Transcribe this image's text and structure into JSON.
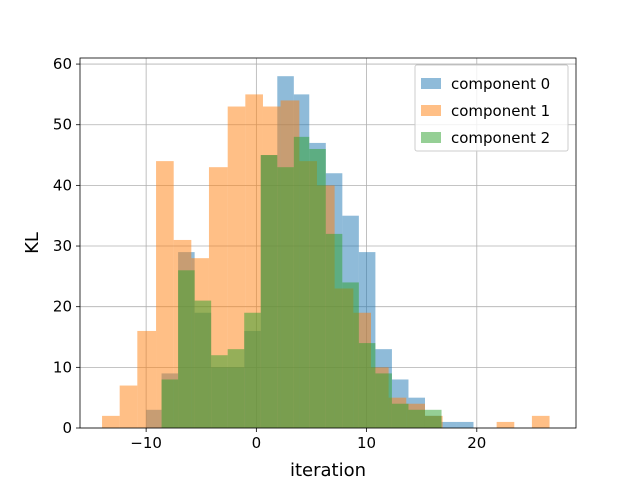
{
  "chart_data": {
    "type": "bar",
    "title": "",
    "xlabel": "iteration",
    "ylabel": "KL",
    "xlim": [
      -16,
      29
    ],
    "ylim": [
      0,
      61
    ],
    "xticks": [
      -10,
      0,
      10,
      20
    ],
    "yticks": [
      0,
      10,
      20,
      30,
      40,
      50,
      60
    ],
    "grid": true,
    "legend_position": "top-right",
    "alpha": 0.5,
    "series": [
      {
        "name": "component 0",
        "color": "#1f77b4",
        "bins": [
          [
            -10,
            -8.6,
            3
          ],
          [
            -8.6,
            -7.1,
            9
          ],
          [
            -7.1,
            -5.6,
            29
          ],
          [
            -5.6,
            -4.1,
            19
          ],
          [
            -4.1,
            -2.6,
            10
          ],
          [
            -2.6,
            -1.1,
            10
          ],
          [
            -1.1,
            0.4,
            16
          ],
          [
            0.4,
            1.9,
            45
          ],
          [
            1.9,
            3.4,
            58
          ],
          [
            3.4,
            4.8,
            55
          ],
          [
            4.8,
            6.3,
            47
          ],
          [
            6.3,
            7.8,
            42
          ],
          [
            7.8,
            9.3,
            35
          ],
          [
            9.3,
            10.8,
            29
          ],
          [
            10.8,
            12.3,
            13
          ],
          [
            12.3,
            13.8,
            8
          ],
          [
            13.8,
            15.3,
            5
          ],
          [
            15.3,
            16.8,
            2
          ],
          [
            16.8,
            18.2,
            1
          ],
          [
            18.2,
            19.7,
            1
          ]
        ]
      },
      {
        "name": "component 1",
        "color": "#ff7f0e",
        "bins": [
          [
            -14,
            -12.4,
            2
          ],
          [
            -12.4,
            -10.8,
            7
          ],
          [
            -10.8,
            -9.1,
            16
          ],
          [
            -9.1,
            -7.5,
            44
          ],
          [
            -7.5,
            -5.9,
            31
          ],
          [
            -5.9,
            -4.3,
            28
          ],
          [
            -4.3,
            -2.6,
            43
          ],
          [
            -2.6,
            -1.0,
            53
          ],
          [
            -1.0,
            0.6,
            55
          ],
          [
            0.6,
            2.2,
            53
          ],
          [
            2.2,
            3.9,
            54
          ],
          [
            3.9,
            5.5,
            44
          ],
          [
            5.5,
            7.1,
            40
          ],
          [
            7.1,
            8.8,
            23
          ],
          [
            8.8,
            10.4,
            19
          ],
          [
            10.4,
            12.0,
            10
          ],
          [
            12.0,
            13.6,
            5
          ],
          [
            13.6,
            15.3,
            4
          ],
          [
            15.3,
            16.9,
            2
          ],
          [
            16.9,
            18.5,
            0
          ],
          [
            18.5,
            20.1,
            0
          ],
          [
            20.1,
            21.8,
            0
          ],
          [
            21.8,
            23.4,
            1
          ],
          [
            23.4,
            25.0,
            0
          ],
          [
            25.0,
            26.6,
            2
          ]
        ]
      },
      {
        "name": "component 2",
        "color": "#2ca02c",
        "bins": [
          [
            -8.6,
            -7.1,
            8
          ],
          [
            -7.1,
            -5.6,
            26
          ],
          [
            -5.6,
            -4.1,
            21
          ],
          [
            -4.1,
            -2.6,
            12
          ],
          [
            -2.6,
            -1.1,
            13
          ],
          [
            -1.1,
            0.4,
            19
          ],
          [
            0.4,
            1.9,
            45
          ],
          [
            1.9,
            3.4,
            43
          ],
          [
            3.4,
            4.8,
            48
          ],
          [
            4.8,
            6.3,
            46
          ],
          [
            6.3,
            7.8,
            32
          ],
          [
            7.8,
            9.3,
            24
          ],
          [
            9.3,
            10.8,
            14
          ],
          [
            10.8,
            12.3,
            9
          ],
          [
            12.3,
            13.8,
            4
          ],
          [
            13.8,
            15.3,
            3
          ],
          [
            15.3,
            16.8,
            3
          ]
        ]
      }
    ]
  }
}
